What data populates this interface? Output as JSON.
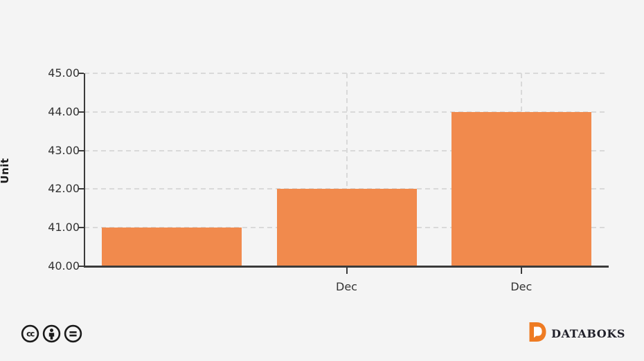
{
  "chart_data": {
    "type": "bar",
    "categories": [
      "",
      "Dec",
      "Dec"
    ],
    "values": [
      41,
      42,
      44
    ],
    "title": "",
    "xlabel": "",
    "ylabel": "Unit",
    "ylim": [
      40,
      45
    ],
    "y_ticks": [
      {
        "value": 45,
        "label": "45.00"
      },
      {
        "value": 44,
        "label": "44.00"
      },
      {
        "value": 43,
        "label": "43.00"
      },
      {
        "value": 42,
        "label": "42.00"
      },
      {
        "value": 41,
        "label": "41.00"
      },
      {
        "value": 40,
        "label": "40.00"
      }
    ],
    "grid": "dashed",
    "legend": "none",
    "bar_color": "#f18a4d"
  },
  "footer": {
    "license": {
      "icons": [
        "cc-icon",
        "attribution-icon",
        "no-derivatives-icon"
      ]
    },
    "brand": {
      "name": "DATABOKS",
      "logo_color": "#ee7b23"
    }
  },
  "colors": {
    "background": "#f4f4f4",
    "axis": "#3b3b3b",
    "gridline": "#d9d9d9",
    "tick_text": "#333333",
    "bar": "#f18a4d",
    "brand_text": "#20202a",
    "license_icon": "#1b1b1b"
  }
}
